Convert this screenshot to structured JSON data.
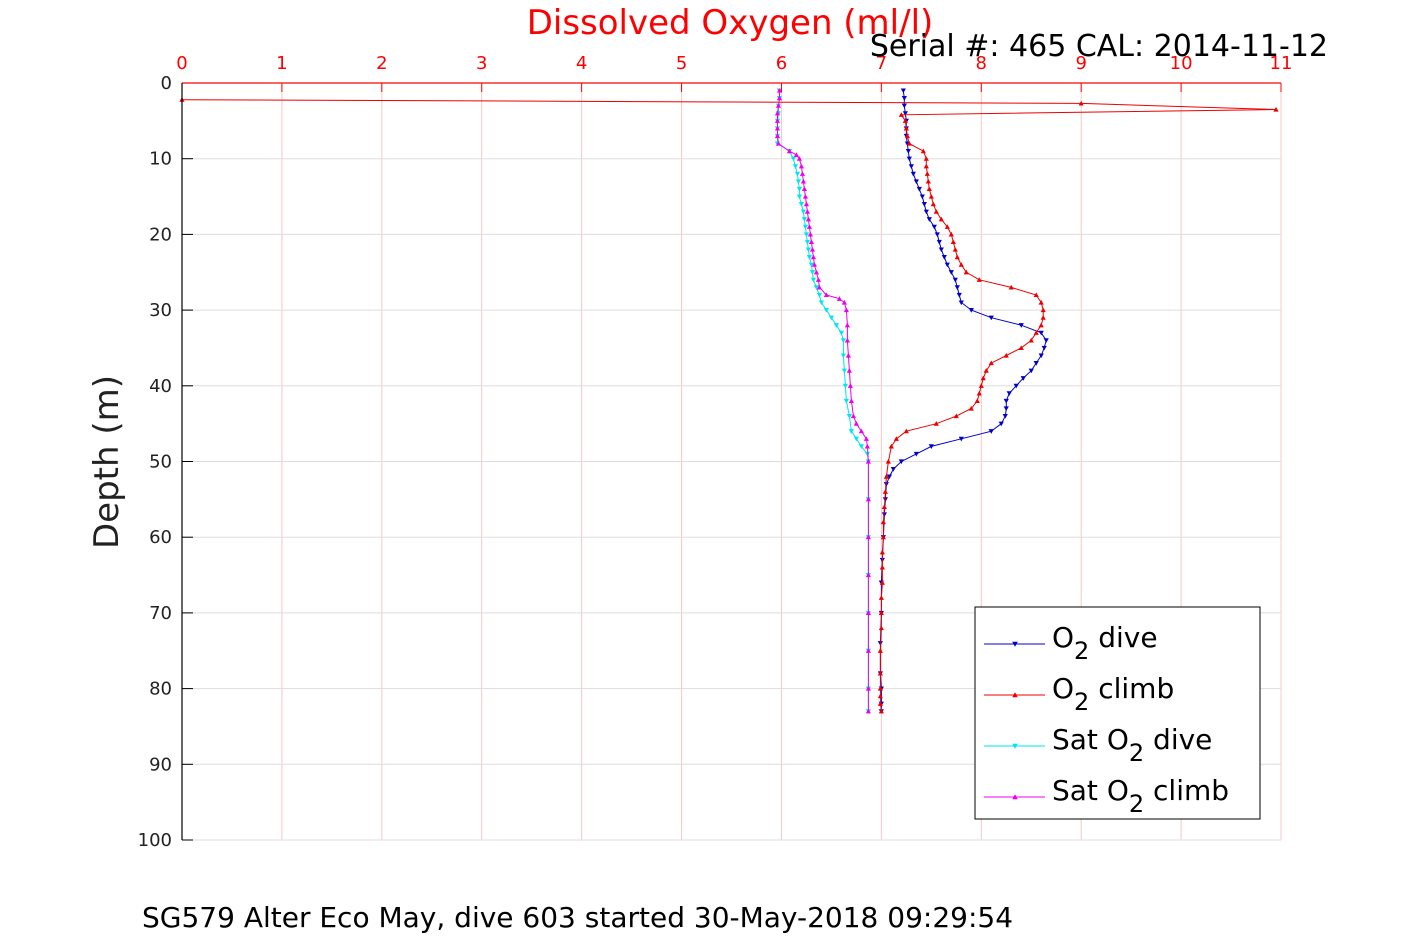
{
  "chart_data": {
    "type": "line",
    "title": "Dissolved Oxygen (ml/l)",
    "subtitle": "Serial #: 465  CAL: 2014-11-12",
    "caption": "SG579 Alter Eco May, dive 603 started 30-May-2018 09:29:54",
    "xlabel": "Dissolved Oxygen (ml/l)",
    "ylabel": "Depth (m)",
    "xlim": [
      0,
      11
    ],
    "ylim": [
      0,
      100
    ],
    "y_reversed": true,
    "x_axis_position": "top",
    "grid": true,
    "x_ticks": [
      "0",
      "1",
      "2",
      "3",
      "4",
      "5",
      "6",
      "7",
      "8",
      "9",
      "10",
      "11"
    ],
    "y_ticks": [
      "0",
      "10",
      "20",
      "30",
      "40",
      "50",
      "60",
      "70",
      "80",
      "90",
      "100"
    ],
    "legend": {
      "placement": "bottom-right",
      "entries": [
        {
          "base": "O",
          "sub": "2",
          "suffix": " dive"
        },
        {
          "base": "O",
          "sub": "2",
          "suffix": " climb"
        },
        {
          "prefix": "Sat ",
          "base": "O",
          "sub": "2",
          "suffix": " dive"
        },
        {
          "prefix": "Sat ",
          "base": "O",
          "sub": "2",
          "suffix": " climb"
        }
      ]
    },
    "colors": {
      "title": "#ff0000",
      "x_axis": "#ff0000",
      "o2_dive": "#0000cc",
      "o2_climb": "#ee0000",
      "sat_dive": "#00e5ee",
      "sat_climb": "#ee00ee",
      "grid_x": "#f4c8c8",
      "grid_y": "#dddddd"
    },
    "series": [
      {
        "key": "o2_dive",
        "marker": "triangle-down",
        "points": [
          [
            7.22,
            1
          ],
          [
            7.23,
            2
          ],
          [
            7.23,
            3
          ],
          [
            7.24,
            4
          ],
          [
            7.25,
            5
          ],
          [
            7.25,
            6
          ],
          [
            7.25,
            7
          ],
          [
            7.26,
            8
          ],
          [
            7.27,
            9
          ],
          [
            7.28,
            10
          ],
          [
            7.3,
            11
          ],
          [
            7.32,
            12
          ],
          [
            7.35,
            13
          ],
          [
            7.38,
            14
          ],
          [
            7.41,
            15
          ],
          [
            7.43,
            16
          ],
          [
            7.45,
            17
          ],
          [
            7.48,
            18
          ],
          [
            7.53,
            19
          ],
          [
            7.56,
            20
          ],
          [
            7.58,
            21
          ],
          [
            7.6,
            22
          ],
          [
            7.63,
            23
          ],
          [
            7.66,
            24
          ],
          [
            7.7,
            25
          ],
          [
            7.74,
            26
          ],
          [
            7.76,
            27
          ],
          [
            7.78,
            28
          ],
          [
            7.8,
            29
          ],
          [
            7.9,
            30
          ],
          [
            8.1,
            31
          ],
          [
            8.4,
            32
          ],
          [
            8.6,
            33
          ],
          [
            8.65,
            34
          ],
          [
            8.63,
            35
          ],
          [
            8.6,
            36
          ],
          [
            8.55,
            37
          ],
          [
            8.5,
            38
          ],
          [
            8.42,
            39
          ],
          [
            8.35,
            40
          ],
          [
            8.28,
            41
          ],
          [
            8.25,
            42
          ],
          [
            8.25,
            43
          ],
          [
            8.24,
            44
          ],
          [
            8.2,
            45
          ],
          [
            8.1,
            46
          ],
          [
            7.8,
            47
          ],
          [
            7.5,
            48
          ],
          [
            7.35,
            49
          ],
          [
            7.2,
            50
          ],
          [
            7.12,
            51
          ],
          [
            7.08,
            52
          ],
          [
            7.05,
            53
          ],
          [
            7.04,
            55
          ],
          [
            7.03,
            57
          ],
          [
            7.02,
            60
          ],
          [
            7.01,
            63
          ],
          [
            7.0,
            66
          ],
          [
            7.0,
            70
          ],
          [
            6.99,
            74
          ],
          [
            6.99,
            78
          ],
          [
            7.0,
            80
          ],
          [
            7.0,
            82
          ],
          [
            7.0,
            83
          ]
        ]
      },
      {
        "key": "o2_climb",
        "marker": "triangle-up",
        "points": [
          [
            7.0,
            83
          ],
          [
            6.99,
            82
          ],
          [
            6.99,
            81
          ],
          [
            6.99,
            80
          ],
          [
            6.99,
            78
          ],
          [
            6.99,
            75
          ],
          [
            7.0,
            72
          ],
          [
            7.0,
            70
          ],
          [
            7.0,
            68
          ],
          [
            7.01,
            66
          ],
          [
            7.01,
            64
          ],
          [
            7.01,
            62
          ],
          [
            7.02,
            60
          ],
          [
            7.02,
            58
          ],
          [
            7.03,
            56
          ],
          [
            7.04,
            54
          ],
          [
            7.05,
            52
          ],
          [
            7.07,
            50
          ],
          [
            7.1,
            48
          ],
          [
            7.15,
            47
          ],
          [
            7.25,
            46
          ],
          [
            7.55,
            45
          ],
          [
            7.75,
            44
          ],
          [
            7.9,
            43
          ],
          [
            7.96,
            42
          ],
          [
            7.98,
            41
          ],
          [
            8.0,
            40
          ],
          [
            8.02,
            39
          ],
          [
            8.05,
            38
          ],
          [
            8.1,
            37
          ],
          [
            8.25,
            36
          ],
          [
            8.4,
            35
          ],
          [
            8.5,
            34
          ],
          [
            8.55,
            33
          ],
          [
            8.6,
            32
          ],
          [
            8.62,
            31
          ],
          [
            8.62,
            30
          ],
          [
            8.6,
            29
          ],
          [
            8.55,
            28
          ],
          [
            8.3,
            27
          ],
          [
            7.98,
            26
          ],
          [
            7.85,
            25
          ],
          [
            7.8,
            24
          ],
          [
            7.76,
            23
          ],
          [
            7.74,
            22
          ],
          [
            7.72,
            21
          ],
          [
            7.7,
            20
          ],
          [
            7.66,
            19
          ],
          [
            7.6,
            18
          ],
          [
            7.55,
            17
          ],
          [
            7.52,
            16
          ],
          [
            7.5,
            15
          ],
          [
            7.48,
            14
          ],
          [
            7.47,
            13
          ],
          [
            7.46,
            12
          ],
          [
            7.45,
            11
          ],
          [
            7.45,
            10
          ],
          [
            7.42,
            9
          ],
          [
            7.28,
            8
          ],
          [
            7.26,
            7
          ],
          [
            7.25,
            6
          ],
          [
            7.24,
            5
          ],
          [
            7.2,
            4.2
          ],
          [
            10.95,
            3.5
          ],
          [
            9.0,
            2.7
          ],
          [
            0.0,
            2.2
          ]
        ]
      },
      {
        "key": "sat_dive",
        "marker": "triangle-down",
        "points": [
          [
            5.98,
            1
          ],
          [
            5.98,
            2
          ],
          [
            5.97,
            3
          ],
          [
            5.97,
            4
          ],
          [
            5.96,
            5
          ],
          [
            5.96,
            6
          ],
          [
            5.96,
            7
          ],
          [
            5.96,
            8
          ],
          [
            6.08,
            9
          ],
          [
            6.12,
            10
          ],
          [
            6.14,
            11
          ],
          [
            6.16,
            12
          ],
          [
            6.17,
            13
          ],
          [
            6.18,
            14
          ],
          [
            6.18,
            15
          ],
          [
            6.2,
            16
          ],
          [
            6.22,
            17
          ],
          [
            6.23,
            18
          ],
          [
            6.24,
            19
          ],
          [
            6.25,
            20
          ],
          [
            6.26,
            21
          ],
          [
            6.27,
            22
          ],
          [
            6.28,
            23
          ],
          [
            6.3,
            24
          ],
          [
            6.31,
            25
          ],
          [
            6.32,
            26
          ],
          [
            6.35,
            27
          ],
          [
            6.38,
            28
          ],
          [
            6.4,
            29
          ],
          [
            6.45,
            30
          ],
          [
            6.5,
            31
          ],
          [
            6.55,
            32
          ],
          [
            6.6,
            33
          ],
          [
            6.62,
            34
          ],
          [
            6.62,
            36
          ],
          [
            6.63,
            38
          ],
          [
            6.64,
            40
          ],
          [
            6.65,
            42
          ],
          [
            6.68,
            44
          ],
          [
            6.7,
            46
          ],
          [
            6.75,
            47
          ],
          [
            6.8,
            48
          ],
          [
            6.86,
            49
          ],
          [
            6.87,
            50
          ],
          [
            6.87,
            55
          ],
          [
            6.87,
            60
          ],
          [
            6.87,
            65
          ],
          [
            6.87,
            70
          ],
          [
            6.87,
            75
          ],
          [
            6.87,
            80
          ],
          [
            6.87,
            83
          ]
        ]
      },
      {
        "key": "sat_climb",
        "marker": "triangle-up",
        "points": [
          [
            6.87,
            83
          ],
          [
            6.87,
            80
          ],
          [
            6.87,
            75
          ],
          [
            6.87,
            70
          ],
          [
            6.87,
            65
          ],
          [
            6.87,
            60
          ],
          [
            6.87,
            55
          ],
          [
            6.87,
            50
          ],
          [
            6.86,
            48
          ],
          [
            6.85,
            47
          ],
          [
            6.8,
            46
          ],
          [
            6.75,
            45
          ],
          [
            6.72,
            44
          ],
          [
            6.7,
            42
          ],
          [
            6.69,
            40
          ],
          [
            6.68,
            38
          ],
          [
            6.67,
            36
          ],
          [
            6.66,
            34
          ],
          [
            6.66,
            32
          ],
          [
            6.65,
            30
          ],
          [
            6.63,
            29
          ],
          [
            6.58,
            28.5
          ],
          [
            6.45,
            28
          ],
          [
            6.38,
            27
          ],
          [
            6.37,
            26
          ],
          [
            6.35,
            25
          ],
          [
            6.33,
            24
          ],
          [
            6.32,
            23
          ],
          [
            6.31,
            22
          ],
          [
            6.3,
            21
          ],
          [
            6.29,
            20
          ],
          [
            6.28,
            19
          ],
          [
            6.27,
            18
          ],
          [
            6.26,
            17
          ],
          [
            6.25,
            16
          ],
          [
            6.24,
            15
          ],
          [
            6.23,
            14
          ],
          [
            6.22,
            13
          ],
          [
            6.21,
            12
          ],
          [
            6.2,
            11
          ],
          [
            6.18,
            10
          ],
          [
            6.15,
            9.5
          ],
          [
            6.08,
            9
          ],
          [
            5.97,
            8
          ],
          [
            5.96,
            7
          ],
          [
            5.96,
            6
          ],
          [
            5.96,
            5
          ],
          [
            5.96,
            4
          ],
          [
            5.97,
            3
          ],
          [
            5.98,
            2
          ],
          [
            5.98,
            1
          ]
        ]
      }
    ]
  }
}
